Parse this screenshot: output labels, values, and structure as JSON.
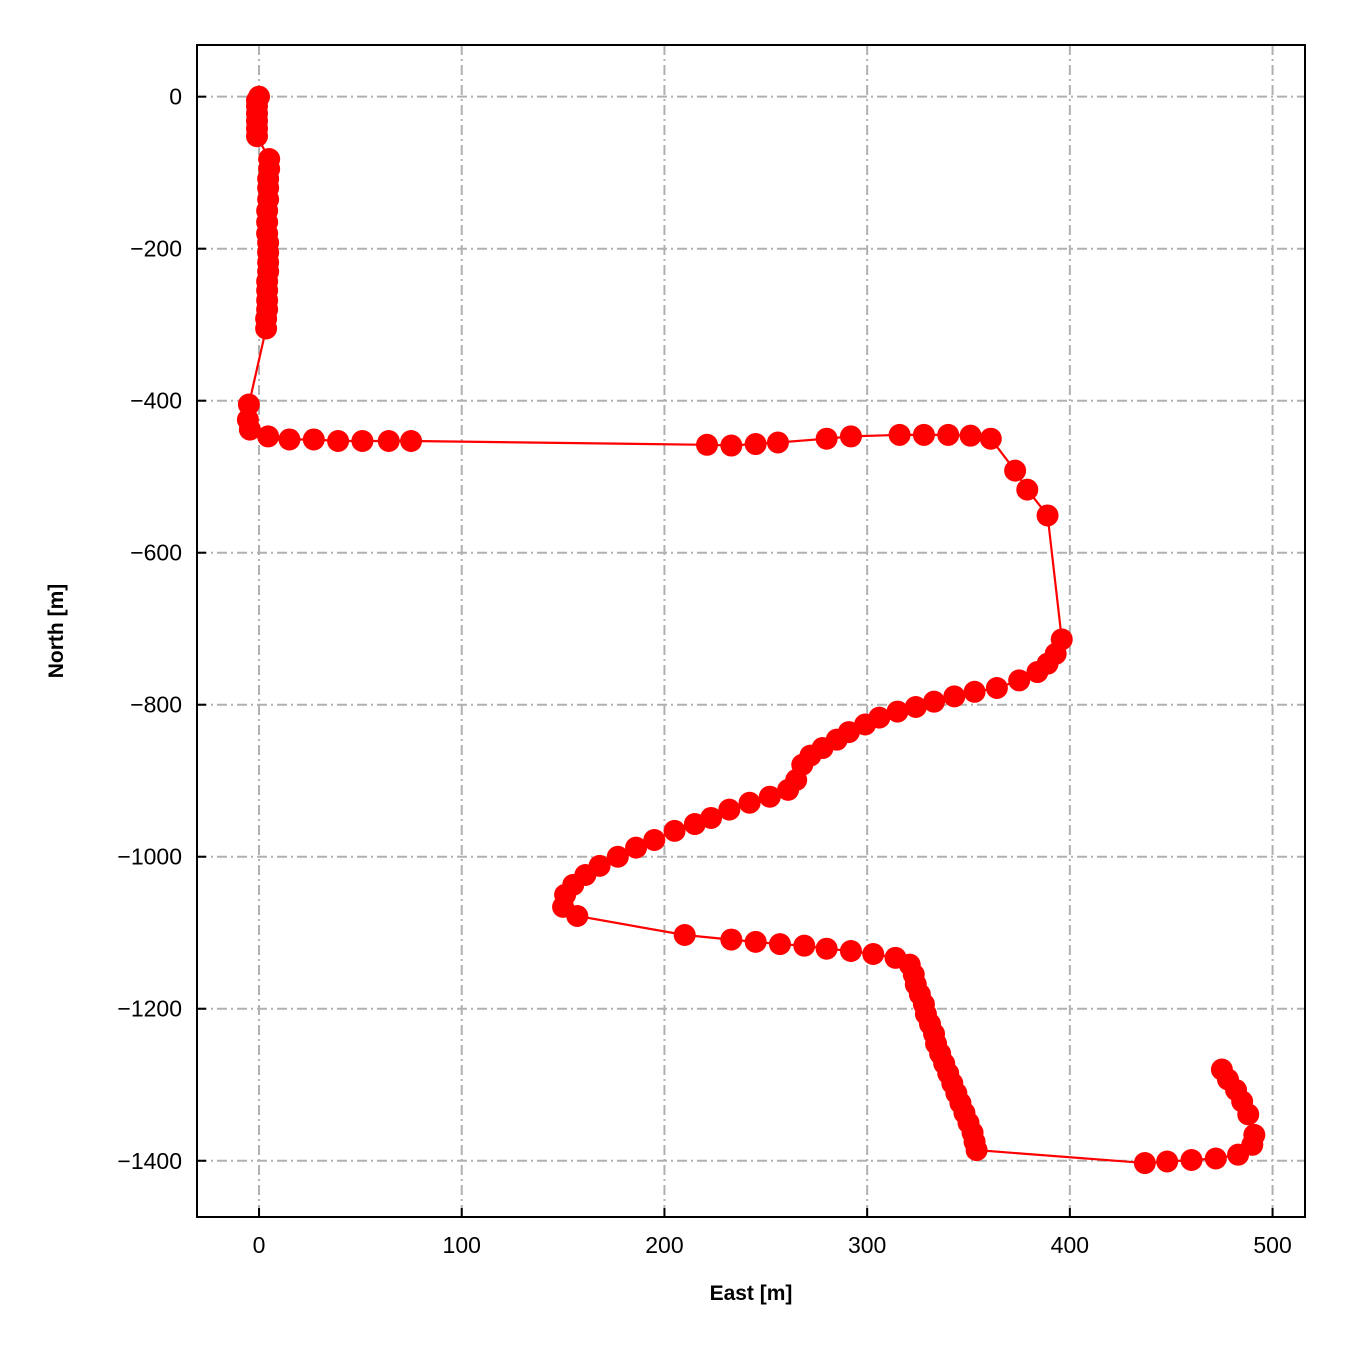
{
  "chart_data": {
    "type": "line",
    "title": "",
    "xlabel": "East [m]",
    "ylabel": "North [m]",
    "xlim": [
      -30.6,
      516
    ],
    "ylim": [
      -1474,
      68
    ],
    "xticks": [
      0,
      100,
      200,
      300,
      400,
      500
    ],
    "yticks": [
      0,
      -200,
      -400,
      -600,
      -800,
      -1000,
      -1200,
      -1400
    ],
    "xtick_labels": [
      "0",
      "100",
      "200",
      "300",
      "400",
      "500"
    ],
    "ytick_labels": [
      "0",
      "−200",
      "−400",
      "−600",
      "−800",
      "−1000",
      "−1200",
      "−1400"
    ],
    "grid": true,
    "grid_style": "dash-dot",
    "legend": "none",
    "series": [
      {
        "color": "#ff0000",
        "marker": "circle",
        "points": [
          [
            0,
            0
          ],
          [
            -1,
            -5
          ],
          [
            -1,
            -12
          ],
          [
            -1,
            -22
          ],
          [
            -1,
            -32
          ],
          [
            -1,
            -42
          ],
          [
            -1,
            -52
          ],
          [
            5,
            -82
          ],
          [
            5,
            -95
          ],
          [
            4.5,
            -108
          ],
          [
            4.5,
            -120
          ],
          [
            4.5,
            -135
          ],
          [
            4,
            -150
          ],
          [
            4,
            -165
          ],
          [
            4,
            -180
          ],
          [
            4.5,
            -192
          ],
          [
            4.5,
            -205
          ],
          [
            4.5,
            -218
          ],
          [
            4.5,
            -230
          ],
          [
            4,
            -243
          ],
          [
            4,
            -255
          ],
          [
            4,
            -268
          ],
          [
            4,
            -280
          ],
          [
            3.5,
            -292
          ],
          [
            3.5,
            -305
          ],
          [
            -5,
            -405
          ],
          [
            -5.5,
            -425
          ],
          [
            -4.5,
            -438
          ],
          [
            4.5,
            -447
          ],
          [
            15,
            -451
          ],
          [
            27,
            -451
          ],
          [
            39,
            -453
          ],
          [
            51,
            -453
          ],
          [
            64,
            -453
          ],
          [
            75,
            -453
          ],
          [
            221,
            -458
          ],
          [
            233,
            -459
          ],
          [
            245,
            -457
          ],
          [
            256,
            -455
          ],
          [
            280,
            -450
          ],
          [
            292,
            -447
          ],
          [
            316,
            -445
          ],
          [
            328,
            -445
          ],
          [
            340,
            -445
          ],
          [
            351,
            -446
          ],
          [
            361,
            -450
          ],
          [
            373,
            -492
          ],
          [
            379,
            -517
          ],
          [
            389,
            -551
          ],
          [
            396,
            -714
          ],
          [
            393,
            -733
          ],
          [
            389,
            -746
          ],
          [
            384,
            -757
          ],
          [
            375,
            -768
          ],
          [
            364,
            -778
          ],
          [
            353,
            -783
          ],
          [
            343,
            -789
          ],
          [
            333,
            -796
          ],
          [
            324,
            -803
          ],
          [
            315,
            -809
          ],
          [
            306,
            -817
          ],
          [
            299,
            -826
          ],
          [
            291,
            -836
          ],
          [
            285,
            -846
          ],
          [
            278,
            -857
          ],
          [
            272,
            -867
          ],
          [
            268,
            -879
          ],
          [
            265,
            -899
          ],
          [
            261,
            -912
          ],
          [
            252,
            -921
          ],
          [
            242,
            -929
          ],
          [
            232,
            -938
          ],
          [
            223,
            -949
          ],
          [
            215,
            -957
          ],
          [
            205,
            -966
          ],
          [
            195,
            -978
          ],
          [
            186,
            -988
          ],
          [
            177,
            -1000
          ],
          [
            168,
            -1012
          ],
          [
            161,
            -1024
          ],
          [
            155,
            -1037
          ],
          [
            151,
            -1050
          ],
          [
            150,
            -1066
          ],
          [
            157,
            -1078
          ],
          [
            210,
            -1103
          ],
          [
            233,
            -1109
          ],
          [
            245,
            -1112
          ],
          [
            257,
            -1115
          ],
          [
            269,
            -1117
          ],
          [
            280,
            -1121
          ],
          [
            292,
            -1124
          ],
          [
            303,
            -1128
          ],
          [
            314,
            -1133
          ],
          [
            321,
            -1142
          ],
          [
            323,
            -1155
          ],
          [
            324,
            -1168
          ],
          [
            326,
            -1181
          ],
          [
            328,
            -1194
          ],
          [
            329,
            -1207
          ],
          [
            331,
            -1220
          ],
          [
            333,
            -1233
          ],
          [
            334,
            -1246
          ],
          [
            336,
            -1259
          ],
          [
            338,
            -1272
          ],
          [
            340,
            -1285
          ],
          [
            342,
            -1298
          ],
          [
            344,
            -1311
          ],
          [
            346,
            -1324
          ],
          [
            348,
            -1337
          ],
          [
            350,
            -1350
          ],
          [
            352,
            -1363
          ],
          [
            353,
            -1375
          ],
          [
            354,
            -1386
          ],
          [
            437,
            -1403
          ],
          [
            448,
            -1401
          ],
          [
            460,
            -1399
          ],
          [
            472,
            -1397
          ],
          [
            483,
            -1392
          ],
          [
            490,
            -1379
          ],
          [
            491,
            -1366
          ],
          [
            488,
            -1339
          ],
          [
            485,
            -1322
          ],
          [
            482,
            -1307
          ],
          [
            478,
            -1293
          ],
          [
            475,
            -1280
          ]
        ]
      }
    ]
  }
}
